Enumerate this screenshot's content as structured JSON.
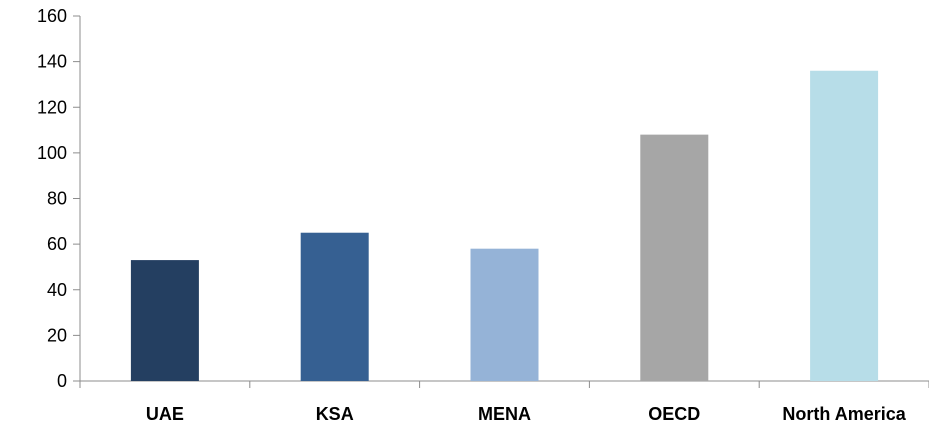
{
  "chart_data": {
    "type": "bar",
    "categories": [
      "UAE",
      "KSA",
      "MENA",
      "OECD",
      "North America"
    ],
    "values": [
      53,
      65,
      58,
      108,
      136
    ],
    "colors": [
      "#243f61",
      "#366092",
      "#95b3d7",
      "#a6a6a6",
      "#b7dde8"
    ],
    "title": "",
    "xlabel": "",
    "ylabel": "",
    "ylim": [
      0,
      160
    ],
    "yticks": [
      "0",
      "20",
      "40",
      "60",
      "80",
      "100",
      "120",
      "140",
      "160"
    ],
    "grid": false,
    "legend": false
  }
}
